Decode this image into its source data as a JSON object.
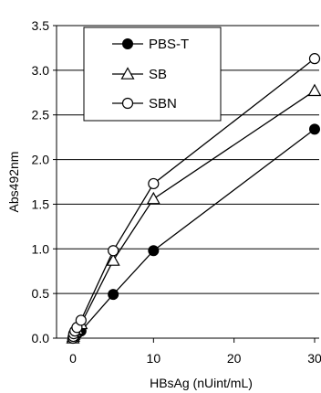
{
  "chart_data": {
    "type": "line",
    "title": "",
    "xlabel": "HBsAg (nUint/mL)",
    "ylabel": "Abs492nm",
    "xlim": [
      -1,
      30
    ],
    "ylim": [
      0.0,
      3.5
    ],
    "xticks": [
      0,
      10,
      20,
      30
    ],
    "xtick_labels": [
      "0",
      "10",
      "20",
      "30"
    ],
    "yticks": [
      0.0,
      0.5,
      1.0,
      1.5,
      2.0,
      2.5,
      3.0,
      3.5
    ],
    "ytick_labels": [
      "0.0",
      "0.5",
      "1.0",
      "1.5",
      "2.0",
      "2.5",
      "3.0",
      "3.5"
    ],
    "grid": "horizontal",
    "legend_position": "top-left",
    "series": [
      {
        "name": "PBS-T",
        "marker": "filled-circle",
        "color": "#000000",
        "x": [
          0,
          0.05,
          0.1,
          0.25,
          0.5,
          1,
          5,
          10,
          30
        ],
        "y": [
          0.0,
          0.01,
          0.02,
          0.03,
          0.05,
          0.08,
          0.49,
          0.98,
          2.34
        ]
      },
      {
        "name": "SB",
        "marker": "open-triangle",
        "color": "#000000",
        "x": [
          0,
          0.05,
          0.1,
          0.25,
          0.5,
          1,
          5,
          10,
          30
        ],
        "y": [
          0.0,
          0.02,
          0.04,
          0.07,
          0.1,
          0.16,
          0.87,
          1.56,
          2.77
        ]
      },
      {
        "name": "SBN",
        "marker": "open-circle",
        "color": "#000000",
        "x": [
          0,
          0.05,
          0.1,
          0.25,
          0.5,
          1,
          5,
          10,
          30
        ],
        "y": [
          0.0,
          0.02,
          0.05,
          0.08,
          0.12,
          0.2,
          0.98,
          1.73,
          3.13
        ]
      }
    ]
  }
}
